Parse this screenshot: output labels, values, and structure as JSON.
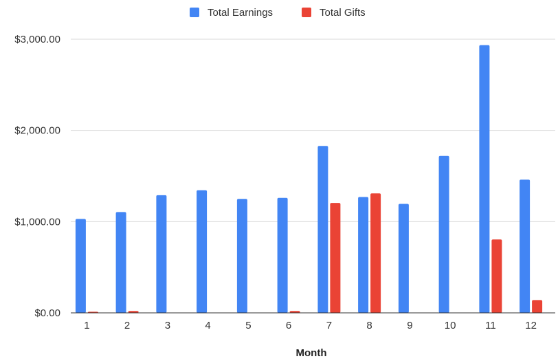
{
  "chart_data": {
    "type": "bar",
    "title": "",
    "xlabel": "Month",
    "ylabel": "",
    "categories": [
      "1",
      "2",
      "3",
      "4",
      "5",
      "6",
      "7",
      "8",
      "9",
      "10",
      "11",
      "12"
    ],
    "series": [
      {
        "name": "Total Earnings",
        "color": "#4285f4",
        "values": [
          1030,
          1105,
          1290,
          1345,
          1250,
          1260,
          1830,
          1270,
          1195,
          1720,
          2935,
          1460
        ]
      },
      {
        "name": "Total Gifts",
        "color": "#ea4335",
        "values": [
          12,
          20,
          0,
          0,
          0,
          20,
          1205,
          1310,
          0,
          0,
          805,
          140
        ]
      }
    ],
    "ylim": [
      0,
      3000
    ],
    "yticks": [
      0,
      1000,
      2000,
      3000
    ],
    "ytick_labels": [
      "$0.00",
      "$1,000.00",
      "$2,000.00",
      "$3,000.00"
    ],
    "grid": true,
    "legend_position": "top"
  }
}
